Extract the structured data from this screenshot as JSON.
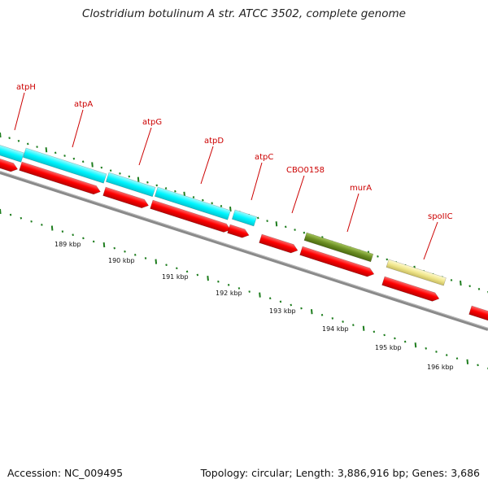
{
  "title": "Clostridium botulinum A str. ATCC 3502, complete genome",
  "accession": "Accession: NC_009495",
  "summary": "Topology: circular; Length: 3,886,916 bp; Genes: 3,686",
  "gene_labels": [
    "atpH",
    "atpA",
    "atpG",
    "atpD",
    "atpC",
    "CBO0158",
    "murA",
    "spoIIC"
  ],
  "kbp_labels": [
    "189 kbp",
    "190 kbp",
    "191 kbp",
    "192 kbp",
    "193 kbp",
    "194 kbp",
    "195 kbp",
    "196 kbp"
  ],
  "colors": {
    "atp_operon": "#00ffff",
    "cds": "#ff0000",
    "murA_feature": "#6b8e23",
    "spoIIC_feature": "#f0e68c",
    "label": "#cc0000",
    "tick": "#1e7d1e",
    "backbone": "#808080"
  }
}
